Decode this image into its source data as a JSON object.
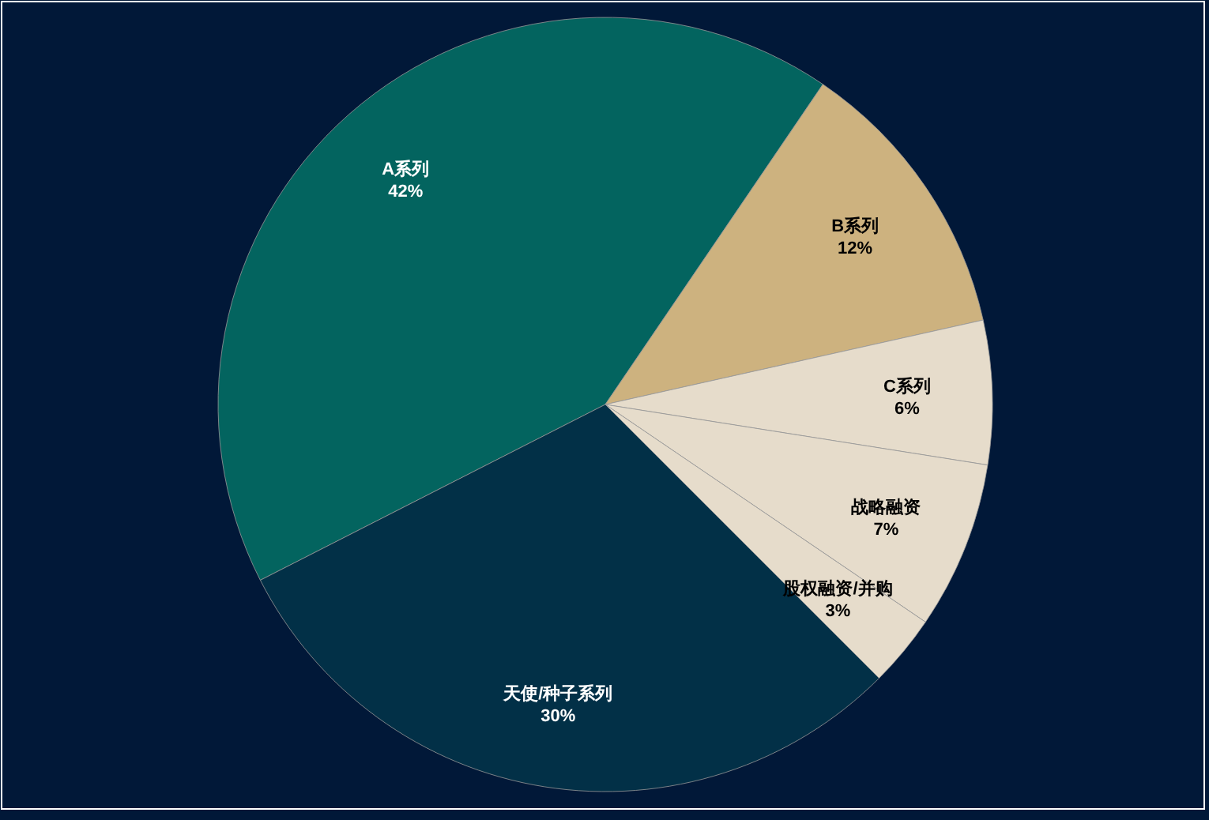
{
  "chart_data": {
    "type": "pie",
    "categories": [
      "A系列",
      "B系列",
      "C系列",
      "战略融资",
      "股权融资/并购",
      "天使/种子系列"
    ],
    "values": [
      42,
      12,
      6,
      7,
      3,
      30
    ],
    "colors": [
      "#03645f",
      "#cdb27f",
      "#e6dccb",
      "#e6dccb",
      "#e6dccb",
      "#023047"
    ],
    "value_labels": [
      "42%",
      "12%",
      "6%",
      "7%",
      "3%",
      "30%"
    ]
  }
}
